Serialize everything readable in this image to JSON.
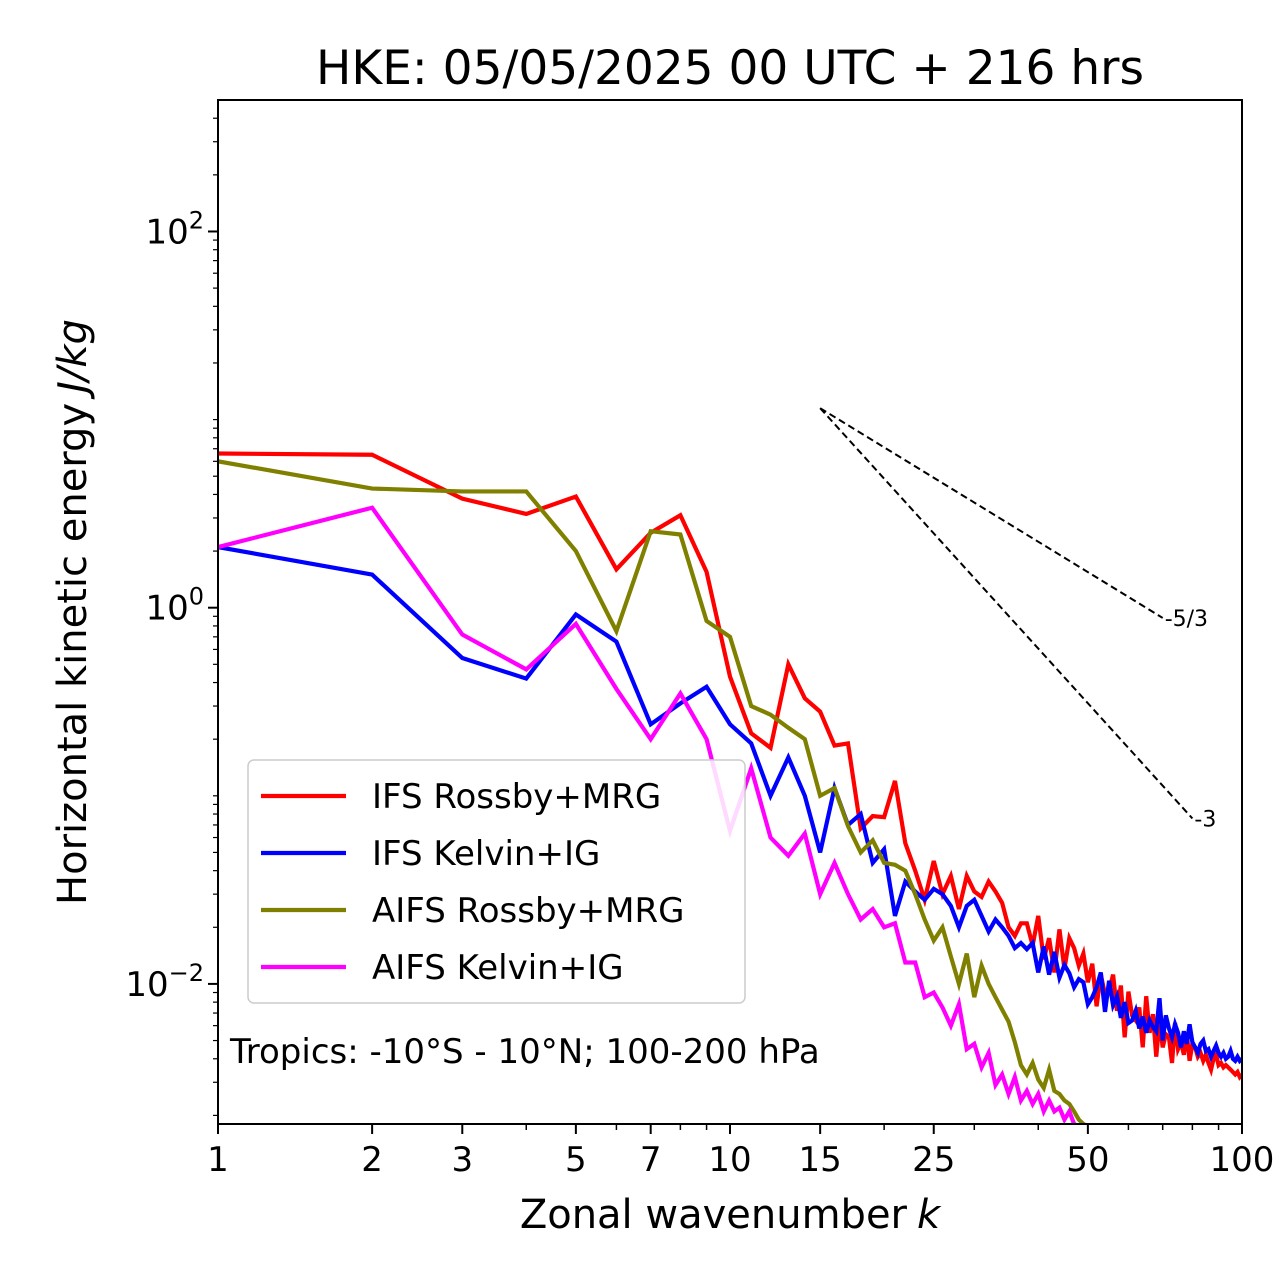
{
  "chart_data": {
    "type": "line",
    "title": "HKE: 05/05/2025 00 UTC + 216 hrs",
    "xlabel": "Zonal wavenumber",
    "xlabel_var": "k",
    "ylabel": "Horizontal kinetic energy",
    "ylabel_units": "J/kg",
    "xscale": "log",
    "yscale": "log",
    "xlim": [
      1,
      100
    ],
    "ylim": [
      0.0018,
      500
    ],
    "x_ticks": [
      {
        "value": 1,
        "label": "1"
      },
      {
        "value": 2,
        "label": "2"
      },
      {
        "value": 3,
        "label": "3"
      },
      {
        "value": 5,
        "label": "5"
      },
      {
        "value": 7,
        "label": "7"
      },
      {
        "value": 10,
        "label": "10"
      },
      {
        "value": 15,
        "label": "15"
      },
      {
        "value": 25,
        "label": "25"
      },
      {
        "value": 50,
        "label": "50"
      },
      {
        "value": 100,
        "label": "100"
      }
    ],
    "y_ticks": [
      {
        "value": 100,
        "base": "10",
        "exp": "2"
      },
      {
        "value": 1,
        "base": "10",
        "exp": "0"
      },
      {
        "value": 0.01,
        "base": "10",
        "exp": "−2"
      }
    ],
    "grid": false,
    "legend_position": "lower-left",
    "annotation": "Tropics: -10°S - 10°N; 100-200 hPa",
    "reference_lines": [
      {
        "label": "-5/3",
        "slope": -1.6667,
        "x_start": 15,
        "y_start": 11.5,
        "x_end": 70
      },
      {
        "label": "-3",
        "slope": -3,
        "x_start": 15,
        "y_start": 11.5,
        "x_end": 80
      }
    ],
    "series": [
      {
        "name": "IFS Rossby+MRG",
        "color": "#ff0000",
        "x": [
          1,
          2,
          3,
          4,
          5,
          6,
          7,
          8,
          9,
          10,
          11,
          12,
          13,
          14,
          15,
          16,
          17,
          18,
          19,
          20,
          21,
          22,
          23,
          24,
          25,
          26,
          27,
          28,
          29,
          30,
          31,
          32,
          33,
          34,
          35,
          36,
          37,
          38,
          39,
          40,
          41,
          42,
          43,
          44,
          45,
          46,
          47,
          48,
          49,
          50,
          51,
          52,
          53,
          54,
          55,
          56,
          57,
          58,
          59,
          60,
          61,
          62,
          63,
          64,
          65,
          66,
          67,
          68,
          69,
          70,
          71,
          72,
          73,
          74,
          75,
          76,
          77,
          78,
          79,
          80,
          81,
          82,
          83,
          84,
          85,
          86,
          87,
          88,
          89,
          90,
          91,
          92,
          93,
          94,
          95,
          96,
          97,
          98,
          99,
          100
        ],
        "y": [
          6.6,
          6.5,
          3.8,
          3.15,
          3.9,
          1.6,
          2.5,
          3.1,
          1.55,
          0.43,
          0.215,
          0.18,
          0.5,
          0.33,
          0.28,
          0.185,
          0.19,
          0.067,
          0.078,
          0.077,
          0.12,
          0.056,
          0.04,
          0.028,
          0.045,
          0.03,
          0.0375,
          0.025,
          0.0375,
          0.031,
          0.029,
          0.035,
          0.031,
          0.027,
          0.02,
          0.018,
          0.021,
          0.021,
          0.016,
          0.023,
          0.0135,
          0.0175,
          0.0115,
          0.0195,
          0.012,
          0.0175,
          0.0155,
          0.0125,
          0.0145,
          0.0102,
          0.0128,
          0.0076,
          0.0112,
          0.0088,
          0.0092,
          0.0112,
          0.0072,
          0.0098,
          0.0052,
          0.0091,
          0.0068,
          0.0064,
          0.0075,
          0.0046,
          0.0086,
          0.0055,
          0.0069,
          0.0041,
          0.0064,
          0.0046,
          0.0054,
          0.0052,
          0.0038,
          0.0062,
          0.0045,
          0.0049,
          0.0042,
          0.0055,
          0.0039,
          0.0048,
          0.0046,
          0.0041,
          0.0043,
          0.0039,
          0.0042,
          0.0038,
          0.0035,
          0.004,
          0.0042,
          0.0037,
          0.0038,
          0.0036,
          0.0037,
          0.0036,
          0.0035,
          0.0034,
          0.0033,
          0.0034,
          0.0032,
          0.0033
        ]
      },
      {
        "name": "IFS Kelvin+IG",
        "color": "#0000ff",
        "x": [
          1,
          2,
          3,
          4,
          5,
          6,
          7,
          8,
          9,
          10,
          11,
          12,
          13,
          14,
          15,
          16,
          17,
          18,
          19,
          20,
          21,
          22,
          23,
          24,
          25,
          26,
          27,
          28,
          29,
          30,
          31,
          32,
          33,
          34,
          35,
          36,
          37,
          38,
          39,
          40,
          41,
          42,
          43,
          44,
          45,
          46,
          47,
          48,
          49,
          50,
          51,
          52,
          53,
          54,
          55,
          56,
          57,
          58,
          59,
          60,
          61,
          62,
          63,
          64,
          65,
          66,
          67,
          68,
          69,
          70,
          71,
          72,
          73,
          74,
          75,
          76,
          77,
          78,
          79,
          80,
          81,
          82,
          83,
          84,
          85,
          86,
          87,
          88,
          89,
          90,
          91,
          92,
          93,
          94,
          95,
          96,
          97,
          98,
          99,
          100
        ],
        "y": [
          2.1,
          1.5,
          0.54,
          0.42,
          0.92,
          0.66,
          0.24,
          0.31,
          0.38,
          0.24,
          0.19,
          0.1,
          0.16,
          0.1,
          0.05,
          0.11,
          0.07,
          0.08,
          0.044,
          0.052,
          0.023,
          0.035,
          0.031,
          0.028,
          0.032,
          0.03,
          0.026,
          0.02,
          0.026,
          0.028,
          0.023,
          0.019,
          0.022,
          0.02,
          0.018,
          0.0155,
          0.0165,
          0.0153,
          0.0165,
          0.0115,
          0.0158,
          0.0112,
          0.0148,
          0.0108,
          0.0126,
          0.0114,
          0.0096,
          0.0106,
          0.0102,
          0.0078,
          0.0085,
          0.0096,
          0.0115,
          0.0071,
          0.0104,
          0.0077,
          0.0086,
          0.0066,
          0.008,
          0.0062,
          0.0064,
          0.0072,
          0.0058,
          0.0067,
          0.0055,
          0.0064,
          0.0059,
          0.0056,
          0.0084,
          0.005,
          0.0068,
          0.0058,
          0.0052,
          0.0061,
          0.0055,
          0.0046,
          0.0056,
          0.0048,
          0.0061,
          0.0049,
          0.0046,
          0.0043,
          0.0048,
          0.005,
          0.0044,
          0.0045,
          0.0041,
          0.0044,
          0.0047,
          0.0043,
          0.0041,
          0.0043,
          0.004,
          0.0041,
          0.0044,
          0.004,
          0.0039,
          0.0041,
          0.0039,
          0.004
        ]
      },
      {
        "name": "AIFS Rossby+MRG",
        "color": "#808000",
        "x": [
          1,
          2,
          3,
          4,
          5,
          6,
          7,
          8,
          9,
          10,
          11,
          12,
          13,
          14,
          15,
          16,
          17,
          18,
          19,
          20,
          21,
          22,
          23,
          24,
          25,
          26,
          27,
          28,
          29,
          30,
          31,
          32,
          33,
          34,
          35,
          36,
          37,
          38,
          39,
          40,
          41,
          42,
          43,
          44,
          45,
          46,
          47,
          48,
          49,
          50,
          51,
          52,
          53,
          54,
          55
        ],
        "y": [
          6.0,
          4.3,
          4.15,
          4.15,
          2.0,
          0.75,
          2.55,
          2.45,
          0.85,
          0.7,
          0.3,
          0.27,
          0.23,
          0.2,
          0.1,
          0.11,
          0.069,
          0.05,
          0.058,
          0.044,
          0.043,
          0.04,
          0.03,
          0.022,
          0.017,
          0.02,
          0.014,
          0.01,
          0.0145,
          0.0085,
          0.0125,
          0.01,
          0.0085,
          0.0073,
          0.0063,
          0.0049,
          0.0037,
          0.0033,
          0.0038,
          0.0031,
          0.0028,
          0.0035,
          0.0027,
          0.0026,
          0.0024,
          0.0023,
          0.0021,
          0.0019,
          0.0018,
          0.00175,
          0.0017,
          0.0016,
          0.0015,
          0.00145,
          0.0014
        ]
      },
      {
        "name": "AIFS Kelvin+IG",
        "color": "#ff00ff",
        "x": [
          1,
          2,
          3,
          4,
          5,
          6,
          7,
          8,
          9,
          10,
          11,
          12,
          13,
          14,
          15,
          16,
          17,
          18,
          19,
          20,
          21,
          22,
          23,
          24,
          25,
          26,
          27,
          28,
          29,
          30,
          31,
          32,
          33,
          34,
          35,
          36,
          37,
          38,
          39,
          40,
          41,
          42,
          43,
          44,
          45,
          46,
          47,
          48,
          49,
          50,
          51,
          52,
          53,
          54,
          55
        ],
        "y": [
          2.1,
          3.4,
          0.72,
          0.47,
          0.82,
          0.37,
          0.2,
          0.35,
          0.2,
          0.065,
          0.14,
          0.06,
          0.048,
          0.063,
          0.03,
          0.044,
          0.03,
          0.022,
          0.025,
          0.02,
          0.021,
          0.013,
          0.013,
          0.0085,
          0.009,
          0.0075,
          0.006,
          0.0078,
          0.0045,
          0.0048,
          0.0036,
          0.0043,
          0.0029,
          0.0033,
          0.0026,
          0.0032,
          0.0024,
          0.0027,
          0.0023,
          0.0026,
          0.0021,
          0.0024,
          0.0021,
          0.0022,
          0.0019,
          0.0021,
          0.0018,
          0.00175,
          0.0017,
          0.0016,
          0.0015,
          0.0015,
          0.0014,
          0.0014,
          0.0013
        ]
      }
    ]
  }
}
